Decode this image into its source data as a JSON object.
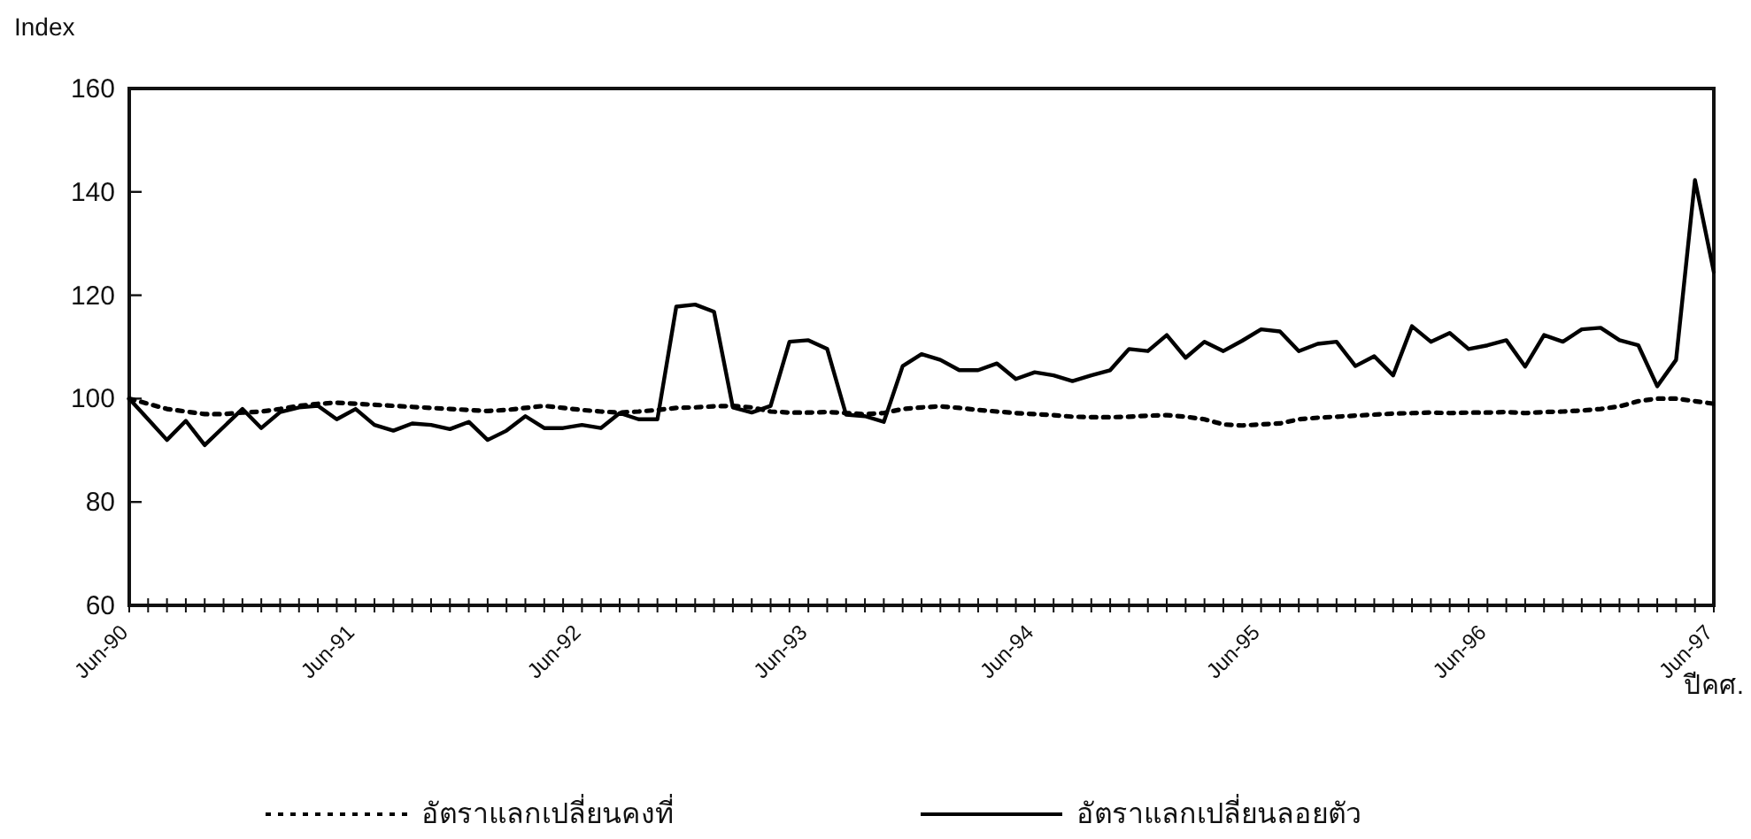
{
  "chart_data": {
    "type": "line",
    "ylabel": "Index",
    "xlabel": "ปีคศ.",
    "legend": "bottom",
    "ylim": [
      60,
      160
    ],
    "yticks": [
      60,
      80,
      100,
      120,
      140,
      160
    ],
    "grid": false,
    "marker": "none",
    "categories": [
      "Jun-90",
      null,
      null,
      null,
      null,
      null,
      null,
      null,
      null,
      null,
      null,
      null,
      "Jun-91",
      null,
      null,
      null,
      null,
      null,
      null,
      null,
      null,
      null,
      null,
      null,
      "Jun-92",
      null,
      null,
      null,
      null,
      null,
      null,
      null,
      null,
      null,
      null,
      null,
      "Jun-93",
      null,
      null,
      null,
      null,
      null,
      null,
      null,
      null,
      null,
      null,
      null,
      "Jun-94",
      null,
      null,
      null,
      null,
      null,
      null,
      null,
      null,
      null,
      null,
      null,
      "Jun-95",
      null,
      null,
      null,
      null,
      null,
      null,
      null,
      null,
      null,
      null,
      null,
      "Jun-96",
      null,
      null,
      null,
      null,
      null,
      null,
      null,
      null,
      null,
      null,
      null,
      "Jun-97"
    ],
    "series": [
      {
        "name": "อัตราแลกเปลี่ยนคงที่",
        "color": "#000000",
        "line_style": "dotted",
        "values": [
          100,
          99,
          98,
          97.5,
          97,
          97,
          97.3,
          97.5,
          98,
          98.6,
          99,
          99.2,
          99,
          98.8,
          98.6,
          98.4,
          98.2,
          98,
          97.8,
          97.6,
          97.8,
          98.2,
          98.6,
          98.2,
          97.8,
          97.5,
          97.3,
          97.5,
          97.8,
          98.2,
          98.3,
          98.5,
          98.6,
          98.3,
          97.5,
          97.3,
          97.3,
          97.4,
          97.2,
          97,
          97.2,
          98,
          98.3,
          98.5,
          98.2,
          97.8,
          97.5,
          97.2,
          97,
          96.8,
          96.5,
          96.4,
          96.4,
          96.5,
          96.7,
          96.8,
          96.5,
          96,
          95,
          94.8,
          95,
          95.2,
          96,
          96.3,
          96.5,
          96.7,
          96.9,
          97.1,
          97.2,
          97.3,
          97.2,
          97.3,
          97.3,
          97.4,
          97.2,
          97.4,
          97.5,
          97.7,
          98,
          98.5,
          99.5,
          100,
          100,
          99.5,
          99
        ]
      },
      {
        "name": "อัตราแลกเปลี่ยนลอยตัว",
        "color": "#000000",
        "line_style": "solid",
        "values": [
          100,
          96,
          92,
          95.7,
          91,
          94.5,
          98,
          94.3,
          97.4,
          98.3,
          98.6,
          96,
          98,
          94.9,
          93.8,
          95.2,
          94.9,
          94.1,
          95.5,
          92,
          93.8,
          96.6,
          94.3,
          94.3,
          94.9,
          94.3,
          97.2,
          96,
          96,
          117.8,
          118.2,
          116.8,
          98.3,
          97.3,
          98.6,
          111,
          111.3,
          109.6,
          96.9,
          96.6,
          95.5,
          106.3,
          108.6,
          107.5,
          105.5,
          105.5,
          106.8,
          103.8,
          105.1,
          104.5,
          103.4,
          104.5,
          105.5,
          109.6,
          109.2,
          112.3,
          107.9,
          111,
          109.2,
          111.2,
          113.4,
          113,
          109.2,
          110.6,
          111,
          106.3,
          108.2,
          104.5,
          114,
          111,
          112.7,
          109.6,
          110.3,
          111.3,
          106.2,
          112.3,
          111,
          113.4,
          113.7,
          111.3,
          110.3,
          102.4,
          107.5,
          142.3,
          124.5
        ]
      }
    ]
  }
}
